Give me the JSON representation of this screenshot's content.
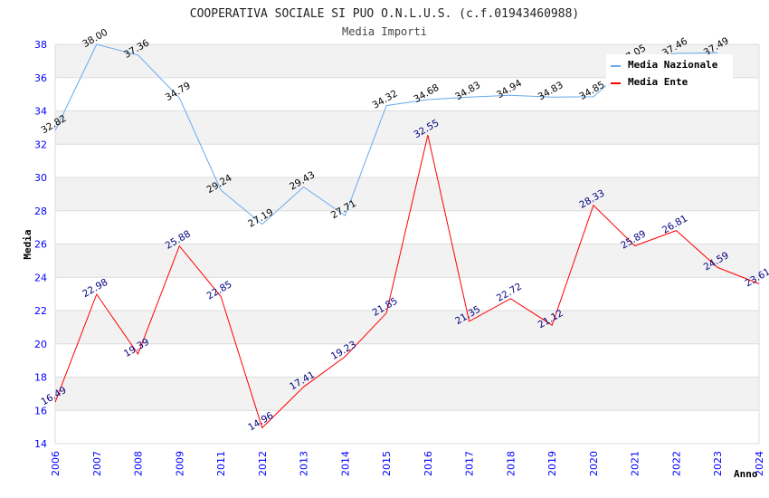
{
  "chart_data": {
    "type": "line",
    "title": "COOPERATIVA SOCIALE SI PUO O.N.L.U.S. (c.f.01943460988)",
    "subtitle": "Media Importi",
    "xlabel": "Anno",
    "ylabel": "Media",
    "ylim": [
      14,
      38
    ],
    "yticks": [
      14,
      16,
      18,
      20,
      22,
      24,
      26,
      28,
      30,
      32,
      34,
      36,
      38
    ],
    "grid": true,
    "legend_position": "top-right",
    "categories": [
      "2006",
      "2007",
      "2008",
      "2009",
      "2011",
      "2012",
      "2013",
      "2014",
      "2015",
      "2016",
      "2017",
      "2018",
      "2019",
      "2020",
      "2021",
      "2022",
      "2023",
      "2024"
    ],
    "series": [
      {
        "name": "Media Nazionale",
        "color": "#66aaee",
        "label_color": "#000000",
        "values": [
          32.82,
          38.0,
          37.36,
          34.79,
          29.24,
          27.19,
          29.43,
          27.71,
          34.32,
          34.68,
          34.83,
          34.94,
          34.83,
          34.85,
          37.05,
          37.46,
          37.49,
          null
        ]
      },
      {
        "name": "Media Ente",
        "color": "#ff0000",
        "label_color": "#000080",
        "values": [
          16.49,
          22.98,
          19.39,
          25.88,
          22.85,
          14.96,
          17.41,
          19.23,
          21.85,
          32.55,
          21.35,
          22.72,
          21.12,
          28.33,
          25.89,
          26.81,
          24.59,
          23.61
        ]
      }
    ]
  }
}
